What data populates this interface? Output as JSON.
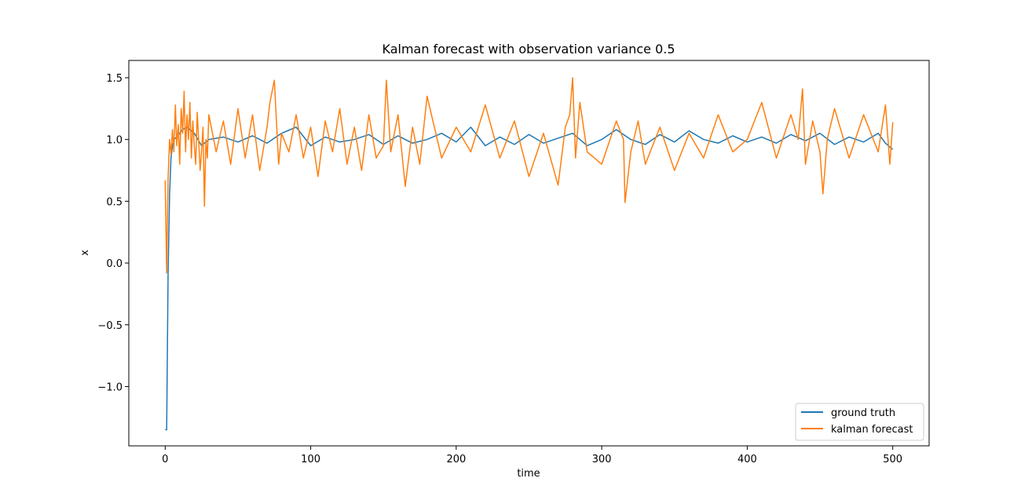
{
  "chart_data": {
    "type": "line",
    "title": "Kalman forecast with observation variance 0.5",
    "xlabel": "time",
    "ylabel": "x",
    "xlim": [
      -25,
      525
    ],
    "ylim": [
      -1.48,
      1.64
    ],
    "x_ticks": [
      0,
      100,
      200,
      300,
      400,
      500
    ],
    "y_ticks": [
      -1.0,
      -0.5,
      0.0,
      0.5,
      1.0,
      1.5
    ],
    "y_tick_labels": [
      "−1.0",
      "−0.5",
      "0.0",
      "0.5",
      "1.0",
      "1.5"
    ],
    "grid": false,
    "legend": {
      "placement": "lower-right",
      "entries": [
        "ground truth",
        "kalman forecast"
      ]
    },
    "series": [
      {
        "name": "ground truth",
        "color": "#1f77b4",
        "x": [
          0,
          1,
          2,
          3,
          4,
          5,
          6,
          8,
          10,
          12,
          15,
          20,
          25,
          30,
          40,
          50,
          60,
          70,
          80,
          90,
          100,
          110,
          120,
          130,
          140,
          150,
          160,
          170,
          180,
          190,
          200,
          210,
          220,
          230,
          240,
          250,
          260,
          270,
          280,
          290,
          300,
          310,
          320,
          330,
          340,
          350,
          360,
          370,
          380,
          390,
          400,
          410,
          420,
          430,
          440,
          450,
          460,
          470,
          480,
          490,
          495,
          500
        ],
        "y": [
          -1.35,
          -1.35,
          -0.1,
          0.55,
          0.85,
          0.95,
          1.0,
          1.02,
          1.05,
          1.08,
          1.1,
          1.05,
          0.95,
          1.0,
          1.02,
          0.98,
          1.03,
          0.97,
          1.05,
          1.1,
          0.95,
          1.02,
          0.98,
          1.0,
          1.04,
          0.96,
          1.03,
          0.97,
          1.0,
          1.05,
          0.98,
          1.1,
          0.95,
          1.02,
          0.96,
          1.04,
          0.97,
          1.01,
          1.05,
          0.95,
          1.0,
          1.08,
          1.0,
          0.96,
          1.04,
          0.98,
          1.07,
          1.0,
          0.97,
          1.03,
          0.98,
          1.02,
          0.97,
          1.04,
          0.99,
          1.05,
          0.96,
          1.02,
          0.98,
          1.05,
          0.97,
          0.92
        ]
      },
      {
        "name": "kalman forecast",
        "color": "#ff7f0e",
        "x": [
          0,
          1,
          2,
          3,
          4,
          5,
          6,
          7,
          8,
          9,
          10,
          11,
          12,
          13,
          14,
          15,
          16,
          17,
          18,
          19,
          20,
          21,
          22,
          23,
          24,
          25,
          26,
          27,
          28,
          29,
          30,
          35,
          40,
          45,
          50,
          55,
          60,
          65,
          70,
          72,
          75,
          78,
          80,
          85,
          90,
          95,
          100,
          105,
          110,
          115,
          120,
          125,
          130,
          135,
          140,
          145,
          150,
          152,
          155,
          160,
          165,
          170,
          175,
          180,
          190,
          200,
          210,
          220,
          230,
          240,
          250,
          260,
          270,
          275,
          278,
          280,
          282,
          285,
          290,
          300,
          310,
          315,
          316,
          320,
          325,
          330,
          340,
          350,
          360,
          370,
          380,
          390,
          400,
          410,
          420,
          430,
          435,
          438,
          440,
          445,
          450,
          452,
          455,
          460,
          470,
          480,
          490,
          495,
          498,
          500
        ],
        "y": [
          0.67,
          -0.08,
          0.68,
          1.0,
          0.88,
          1.08,
          0.9,
          1.28,
          0.95,
          1.12,
          0.8,
          1.25,
          1.05,
          1.39,
          0.9,
          1.2,
          1.0,
          1.3,
          0.85,
          1.15,
          0.95,
          0.8,
          1.22,
          1.0,
          0.75,
          0.9,
          1.1,
          0.46,
          1.0,
          0.85,
          1.2,
          0.9,
          1.15,
          0.8,
          1.25,
          0.85,
          1.2,
          0.75,
          1.1,
          1.3,
          1.48,
          0.8,
          1.05,
          0.9,
          1.2,
          0.85,
          1.1,
          0.7,
          1.15,
          0.9,
          1.25,
          0.8,
          1.1,
          0.75,
          1.2,
          0.85,
          0.95,
          1.48,
          0.9,
          1.2,
          0.62,
          1.1,
          0.8,
          1.35,
          0.85,
          1.1,
          0.9,
          1.28,
          0.85,
          1.15,
          0.7,
          1.05,
          0.63,
          1.1,
          1.2,
          1.5,
          0.85,
          1.3,
          0.9,
          0.8,
          1.15,
          1.0,
          0.49,
          0.9,
          1.15,
          0.8,
          1.1,
          0.75,
          1.05,
          0.85,
          1.2,
          0.9,
          1.0,
          1.3,
          0.85,
          1.2,
          1.0,
          1.41,
          0.8,
          1.15,
          0.9,
          0.56,
          1.0,
          1.25,
          0.85,
          1.2,
          0.9,
          1.28,
          0.8,
          1.14
        ]
      }
    ]
  }
}
